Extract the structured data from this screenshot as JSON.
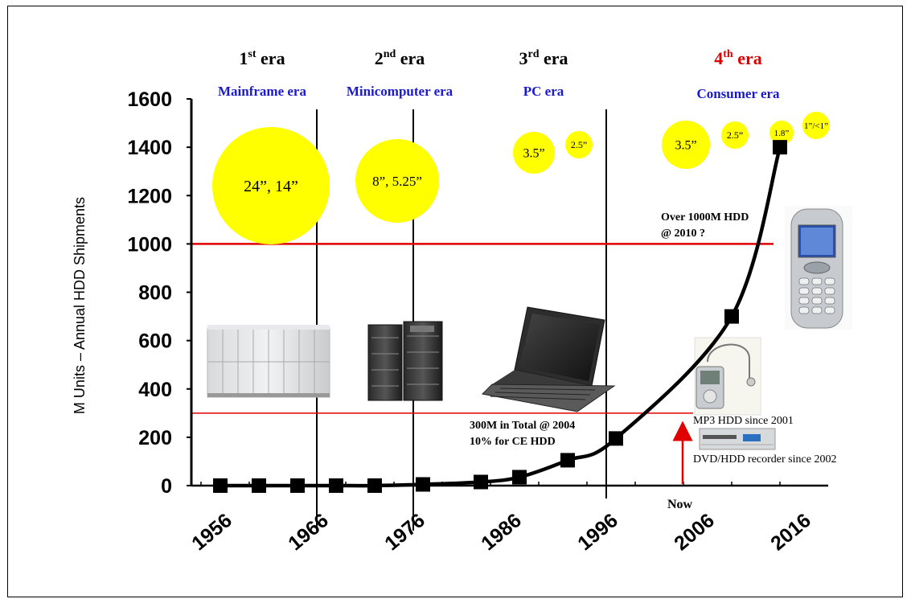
{
  "chart_data": {
    "type": "line",
    "ylabel": "M Units – Annual HDD Shipments",
    "ylim": [
      0,
      1600
    ],
    "y_ticks": [
      "0",
      "200",
      "400",
      "600",
      "800",
      "1000",
      "1200",
      "1400",
      "1600"
    ],
    "x_ticks": [
      "1956",
      "1966",
      "1976",
      "1986",
      "1996",
      "2006",
      "2016"
    ],
    "xlim": [
      1953,
      2019
    ],
    "series": [
      {
        "x": [
          1956,
          1960,
          1964,
          1968,
          1972,
          1977,
          1983,
          1987,
          1992,
          1997,
          2009,
          2014
        ],
        "values": [
          0,
          0,
          0,
          0,
          0,
          5,
          15,
          35,
          105,
          195,
          700,
          1400
        ]
      }
    ],
    "reference_lines": [
      {
        "y": 1000,
        "color": "#e00000"
      },
      {
        "y": 300,
        "color": "#e00000"
      }
    ],
    "era_dividers": [
      1966,
      1976,
      1996
    ],
    "eras": [
      {
        "title": "1",
        "sup": "st",
        "word": " era",
        "subtitle": "Mainframe era",
        "color": "#000000",
        "sub_color": "#1a1acc"
      },
      {
        "title": "2",
        "sup": "nd",
        "word": " era",
        "subtitle": "Minicomputer era",
        "color": "#000000",
        "sub_color": "#1a1acc"
      },
      {
        "title": "3",
        "sup": "rd",
        "word": " era",
        "subtitle": "PC era",
        "color": "#000000",
        "sub_color": "#1a1acc"
      },
      {
        "title": "4",
        "sup": "th",
        "word": " era",
        "subtitle": "Consumer era",
        "color": "#e00000",
        "sub_color": "#1a1acc"
      }
    ],
    "form_factor_bubbles": [
      {
        "label": "24”, 14”"
      },
      {
        "label": "8”, 5.25”"
      },
      {
        "label": "3.5”"
      },
      {
        "label": "2.5”"
      },
      {
        "label": "3.5”"
      },
      {
        "label": "2.5”"
      },
      {
        "label": "1.8”"
      },
      {
        "label": "1”/<1”"
      }
    ],
    "annotations": {
      "over_1000_line1": "Over 1000M HDD",
      "over_1000_line2": "@ 2010 ?",
      "total_line1": "300M in Total @ 2004",
      "total_line2": "10% for CE HDD",
      "mp3": "MP3 HDD since 2001",
      "dvd": "DVD/HDD recorder since 2002",
      "now": "Now"
    },
    "colors": {
      "bubble": "#ffff00",
      "reference": "#e00000",
      "arrow": "#e00000",
      "curve": "#000000"
    }
  }
}
